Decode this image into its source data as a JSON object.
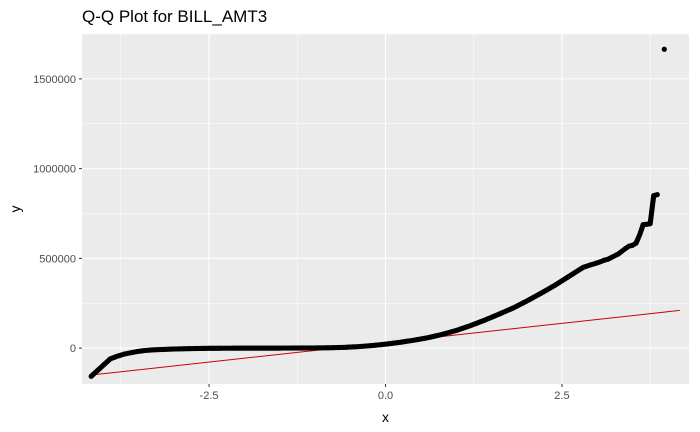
{
  "chart_data": {
    "type": "scatter",
    "title": "Q-Q Plot for BILL_AMT3",
    "xlabel": "x",
    "ylabel": "y",
    "xlim": [
      -4.3,
      4.3
    ],
    "ylim": [
      -200000,
      1750000
    ],
    "x_ticks": [
      -2.5,
      0.0,
      2.5
    ],
    "x_tick_labels": [
      "-2.5",
      "0.0",
      "2.5"
    ],
    "y_ticks": [
      0,
      500000,
      1000000,
      1500000
    ],
    "y_tick_labels": [
      "0",
      "500000",
      "1000000",
      "1500000"
    ],
    "grid": true,
    "panel_background": "#ebebeb",
    "grid_color": "#ffffff",
    "point_color": "#000000",
    "line_color": "#cc0000",
    "reference_line": {
      "x": [
        -4.17,
        4.17
      ],
      "y": [
        -150000,
        210000
      ]
    },
    "points": {
      "x": [
        -4.17,
        -3.9,
        -3.8,
        -3.7,
        -3.6,
        -3.5,
        -3.4,
        -3.3,
        -3.2,
        -3.0,
        -2.8,
        -2.5,
        -2.0,
        -1.5,
        -1.0,
        -0.8,
        -0.6,
        -0.4,
        -0.2,
        0.0,
        0.2,
        0.4,
        0.6,
        0.8,
        1.0,
        1.2,
        1.4,
        1.6,
        1.8,
        2.0,
        2.2,
        2.4,
        2.6,
        2.7,
        2.8,
        2.9,
        3.0,
        3.05,
        3.1,
        3.15,
        3.2,
        3.25,
        3.3,
        3.35,
        3.4,
        3.45,
        3.5,
        3.55,
        3.6,
        3.65,
        3.7,
        3.75,
        3.8,
        3.85,
        3.95
      ],
      "y": [
        -157000,
        -60000,
        -45000,
        -33000,
        -25000,
        -18000,
        -13000,
        -10000,
        -8000,
        -5000,
        -3000,
        -1000,
        0,
        0,
        1000,
        2000,
        4000,
        8000,
        14000,
        22000,
        32000,
        44000,
        58000,
        76000,
        98000,
        125000,
        155000,
        188000,
        222000,
        262000,
        305000,
        350000,
        400000,
        425000,
        450000,
        463000,
        475000,
        482000,
        490000,
        495000,
        505000,
        515000,
        525000,
        540000,
        555000,
        568000,
        573000,
        585000,
        630000,
        688000,
        690000,
        693000,
        850000,
        855000,
        1665000
      ]
    }
  }
}
